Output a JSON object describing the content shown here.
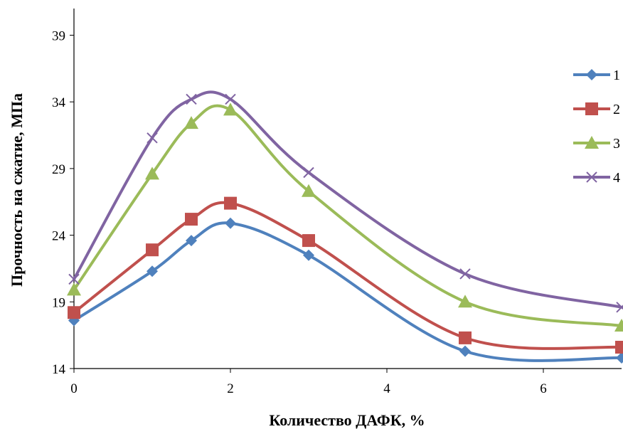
{
  "chart_data": {
    "type": "line",
    "smooth": true,
    "xlabel": "Количество ДАФК, %",
    "ylabel": "Прочность на сжатие, МПа",
    "xlim": [
      0,
      7
    ],
    "ylim": [
      14,
      41
    ],
    "x_ticks": [
      "0",
      "2",
      "4",
      "6"
    ],
    "y_ticks": [
      "14",
      "19",
      "24",
      "29",
      "34",
      "39"
    ],
    "grid": false,
    "legend_position": "right",
    "x": [
      0,
      1,
      1.5,
      2,
      3,
      5,
      7
    ],
    "series": [
      {
        "name": "1",
        "color": "#4f81bd",
        "marker": "diamond",
        "values": [
          17.6,
          21.3,
          23.6,
          24.9,
          22.5,
          15.3,
          14.8
        ]
      },
      {
        "name": "2",
        "color": "#c0504d",
        "marker": "square",
        "values": [
          18.2,
          22.9,
          25.2,
          26.4,
          23.6,
          16.3,
          15.6
        ]
      },
      {
        "name": "3",
        "color": "#9bbb59",
        "marker": "triangle",
        "values": [
          19.9,
          28.6,
          32.4,
          33.4,
          27.3,
          19.0,
          17.2
        ]
      },
      {
        "name": "4",
        "color": "#8064a2",
        "marker": "cross",
        "values": [
          20.7,
          31.3,
          34.2,
          34.2,
          28.7,
          21.1,
          18.6
        ]
      }
    ]
  }
}
